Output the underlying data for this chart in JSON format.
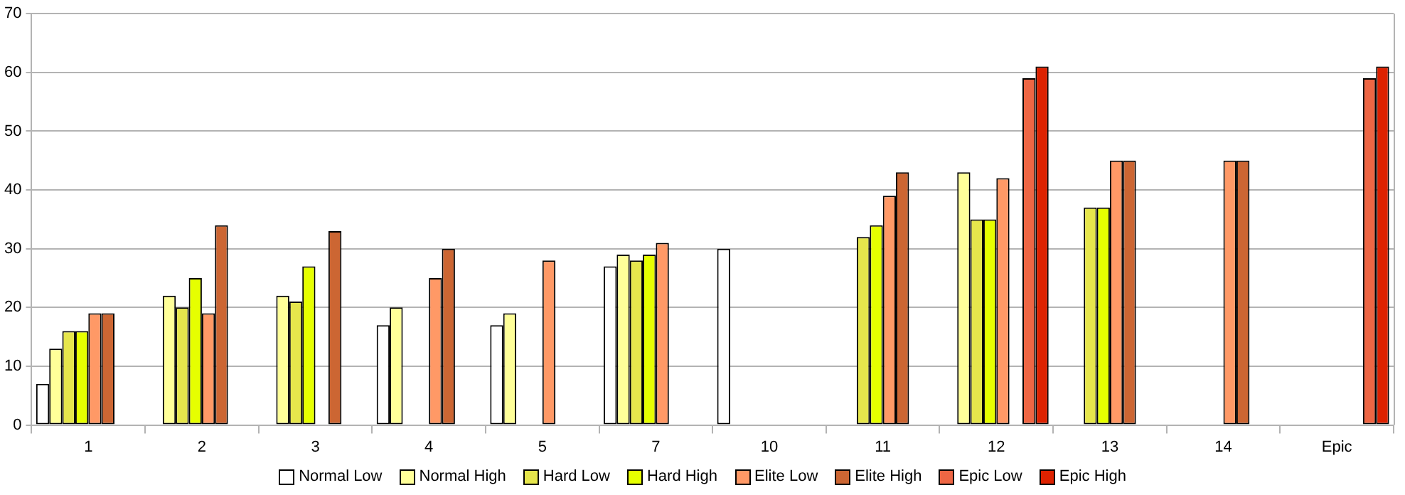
{
  "chart_data": {
    "type": "bar",
    "categories": [
      "1",
      "2",
      "3",
      "4",
      "5",
      "7",
      "10",
      "11",
      "12",
      "13",
      "14",
      "Epic"
    ],
    "series": [
      {
        "name": "Normal Low",
        "color": "#ffffff",
        "values": [
          7,
          null,
          null,
          17,
          17,
          27,
          30,
          null,
          null,
          null,
          null,
          null
        ]
      },
      {
        "name": "Normal High",
        "color": "#ffff99",
        "values": [
          13,
          22,
          22,
          20,
          19,
          29,
          null,
          null,
          43,
          null,
          null,
          null
        ]
      },
      {
        "name": "Hard Low",
        "color": "#e6e64c",
        "values": [
          16,
          20,
          21,
          null,
          null,
          28,
          null,
          32,
          35,
          37,
          null,
          null
        ]
      },
      {
        "name": "Hard High",
        "color": "#e6ff00",
        "values": [
          16,
          25,
          27,
          null,
          null,
          29,
          null,
          34,
          35,
          37,
          null,
          null
        ]
      },
      {
        "name": "Elite Low",
        "color": "#ff9966",
        "values": [
          19,
          19,
          null,
          25,
          28,
          31,
          null,
          39,
          42,
          45,
          45,
          null
        ]
      },
      {
        "name": "Elite High",
        "color": "#cc6633",
        "values": [
          19,
          34,
          33,
          30,
          null,
          null,
          null,
          43,
          null,
          45,
          45,
          null
        ]
      },
      {
        "name": "Epic Low",
        "color": "#ee6644",
        "values": [
          null,
          null,
          null,
          null,
          null,
          null,
          null,
          null,
          59,
          null,
          null,
          59
        ]
      },
      {
        "name": "Epic High",
        "color": "#dd2200",
        "values": [
          null,
          null,
          null,
          null,
          null,
          null,
          null,
          null,
          61,
          null,
          null,
          61
        ]
      }
    ],
    "ylim": [
      0,
      70
    ],
    "yticks": [
      0,
      10,
      20,
      30,
      40,
      50,
      60,
      70
    ],
    "grid": "y",
    "legend": "bottom"
  }
}
